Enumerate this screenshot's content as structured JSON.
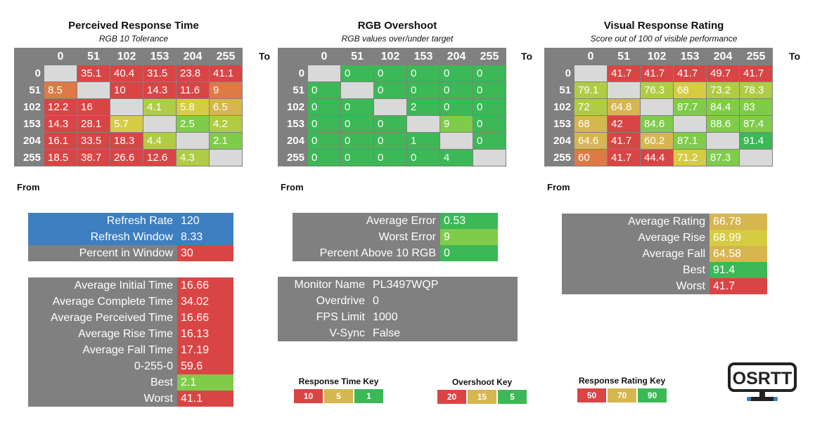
{
  "colors": {
    "red": "#d94545",
    "orange": "#dd7a45",
    "gold": "#d6b64f",
    "yellow": "#d6cc42",
    "lime": "#b0cc45",
    "lightgreen": "#7fcc4a",
    "green": "#3cb856",
    "blue": "#3d7fc0",
    "gray": "#808080"
  },
  "labels": {
    "to": "To",
    "from": "From"
  },
  "chart_data": [
    {
      "type": "heatmap",
      "title": "Perceived Response Time",
      "subtitle": "RGB 10 Tolerance",
      "x_labels": [
        "0",
        "51",
        "102",
        "153",
        "204",
        "255"
      ],
      "y_labels": [
        "0",
        "51",
        "102",
        "153",
        "204",
        "255"
      ],
      "values": [
        [
          null,
          35.1,
          40.4,
          31.5,
          23.8,
          41.1
        ],
        [
          8.5,
          null,
          10,
          14.3,
          11.6,
          9
        ],
        [
          12.2,
          16,
          null,
          4.1,
          5.8,
          6.5
        ],
        [
          14.3,
          28.1,
          5.7,
          null,
          2.5,
          4.2
        ],
        [
          16.1,
          33.5,
          18.3,
          4.4,
          null,
          2.1
        ],
        [
          18.5,
          38.7,
          26.6,
          12.6,
          4.3,
          null
        ]
      ],
      "cell_colors": [
        [
          null,
          "red",
          "red",
          "red",
          "red",
          "red"
        ],
        [
          "orange",
          null,
          "red",
          "red",
          "red",
          "orange"
        ],
        [
          "red",
          "red",
          null,
          "lime",
          "yellow",
          "gold"
        ],
        [
          "red",
          "red",
          "yellow",
          null,
          "lightgreen",
          "lime"
        ],
        [
          "red",
          "red",
          "red",
          "lime",
          null,
          "lightgreen"
        ],
        [
          "red",
          "red",
          "red",
          "red",
          "lime",
          null
        ]
      ]
    },
    {
      "type": "heatmap",
      "title": "RGB Overshoot",
      "subtitle": "RGB values over/under target",
      "x_labels": [
        "0",
        "51",
        "102",
        "153",
        "204",
        "255"
      ],
      "y_labels": [
        "0",
        "51",
        "102",
        "153",
        "204",
        "255"
      ],
      "values": [
        [
          null,
          0,
          0,
          0,
          0,
          0
        ],
        [
          0,
          null,
          0,
          0,
          0,
          0
        ],
        [
          0,
          0,
          null,
          2,
          0,
          0
        ],
        [
          0,
          0,
          0,
          null,
          9,
          0
        ],
        [
          0,
          0,
          0,
          1,
          null,
          0
        ],
        [
          0,
          0,
          0,
          0,
          4,
          null
        ]
      ],
      "cell_colors": [
        [
          null,
          "green",
          "green",
          "green",
          "green",
          "green"
        ],
        [
          "green",
          null,
          "green",
          "green",
          "green",
          "green"
        ],
        [
          "green",
          "green",
          null,
          "green",
          "green",
          "green"
        ],
        [
          "green",
          "green",
          "green",
          null,
          "lightgreen",
          "green"
        ],
        [
          "green",
          "green",
          "green",
          "green",
          null,
          "green"
        ],
        [
          "green",
          "green",
          "green",
          "green",
          "green",
          null
        ]
      ]
    },
    {
      "type": "heatmap",
      "title": "Visual Response Rating",
      "subtitle": "Score out of 100 of visible performance",
      "x_labels": [
        "0",
        "51",
        "102",
        "153",
        "204",
        "255"
      ],
      "y_labels": [
        "0",
        "51",
        "102",
        "153",
        "204",
        "255"
      ],
      "values": [
        [
          null,
          41.7,
          41.7,
          41.7,
          49.7,
          41.7
        ],
        [
          79.1,
          null,
          76.3,
          68,
          73.2,
          78.3
        ],
        [
          72,
          64.8,
          null,
          87.7,
          84.4,
          83
        ],
        [
          68,
          42,
          84.6,
          null,
          88.6,
          87.4
        ],
        [
          64.6,
          41.7,
          60.2,
          87.1,
          null,
          91.4
        ],
        [
          60,
          41.7,
          44.4,
          71.2,
          87.3,
          null
        ]
      ],
      "cell_colors": [
        [
          null,
          "red",
          "red",
          "red",
          "red",
          "red"
        ],
        [
          "lime",
          null,
          "lime",
          "yellow",
          "lime",
          "lime"
        ],
        [
          "lime",
          "gold",
          null,
          "lightgreen",
          "lightgreen",
          "lightgreen"
        ],
        [
          "gold",
          "red",
          "lightgreen",
          null,
          "lightgreen",
          "lightgreen"
        ],
        [
          "gold",
          "red",
          "gold",
          "lightgreen",
          null,
          "green"
        ],
        [
          "orange",
          "red",
          "red",
          "yellow",
          "lightgreen",
          null
        ]
      ]
    }
  ],
  "stats": {
    "refresh": [
      {
        "label": "Refresh Rate",
        "value": "120",
        "color": "blue",
        "label_color": "blue"
      },
      {
        "label": "Refresh Window",
        "value": "8.33",
        "color": "blue",
        "label_color": "blue"
      },
      {
        "label": "Percent in Window",
        "value": "30",
        "color": "red",
        "label_color": "gray"
      }
    ],
    "times": [
      {
        "label": "Average Initial Time",
        "value": "16.66",
        "color": "red"
      },
      {
        "label": "Average Complete Time",
        "value": "34.02",
        "color": "red"
      },
      {
        "label": "Average Perceived Time",
        "value": "16.66",
        "color": "red"
      },
      {
        "label": "Average Rise Time",
        "value": "16.13",
        "color": "red"
      },
      {
        "label": "Average Fall Time",
        "value": "17.19",
        "color": "red"
      },
      {
        "label": "0-255-0",
        "value": "59.6",
        "color": "red"
      },
      {
        "label": "Best",
        "value": "2.1",
        "color": "lightgreen"
      },
      {
        "label": "Worst",
        "value": "41.1",
        "color": "red"
      }
    ],
    "overshoot": [
      {
        "label": "Average Error",
        "value": "0.53",
        "color": "green"
      },
      {
        "label": "Worst Error",
        "value": "9",
        "color": "lightgreen"
      },
      {
        "label": "Percent Above 10 RGB",
        "value": "0",
        "color": "green"
      }
    ],
    "monitor": [
      {
        "label": "Monitor Name",
        "value": "PL3497WQP"
      },
      {
        "label": "Overdrive",
        "value": "0"
      },
      {
        "label": "FPS Limit",
        "value": "1000"
      },
      {
        "label": "V-Sync",
        "value": "False"
      }
    ],
    "rating": [
      {
        "label": "Average Rating",
        "value": "66.78",
        "color": "gold"
      },
      {
        "label": "Average Rise",
        "value": "68.99",
        "color": "yellow"
      },
      {
        "label": "Average Fall",
        "value": "64.58",
        "color": "gold"
      },
      {
        "label": "Best",
        "value": "91.4",
        "color": "green"
      },
      {
        "label": "Worst",
        "value": "41.7",
        "color": "red"
      }
    ]
  },
  "keys": [
    {
      "title": "Response Time Key",
      "cells": [
        {
          "text": "10",
          "color": "red"
        },
        {
          "text": "5",
          "color": "gold"
        },
        {
          "text": "1",
          "color": "green"
        }
      ]
    },
    {
      "title": "Overshoot Key",
      "cells": [
        {
          "text": "20",
          "color": "red"
        },
        {
          "text": "15",
          "color": "gold"
        },
        {
          "text": "5",
          "color": "green"
        }
      ]
    },
    {
      "title": "Response Rating Key",
      "cells": [
        {
          "text": "50",
          "color": "red"
        },
        {
          "text": "70",
          "color": "gold"
        },
        {
          "text": "90",
          "color": "green"
        }
      ]
    }
  ],
  "logo": {
    "text": "OSRTT"
  }
}
